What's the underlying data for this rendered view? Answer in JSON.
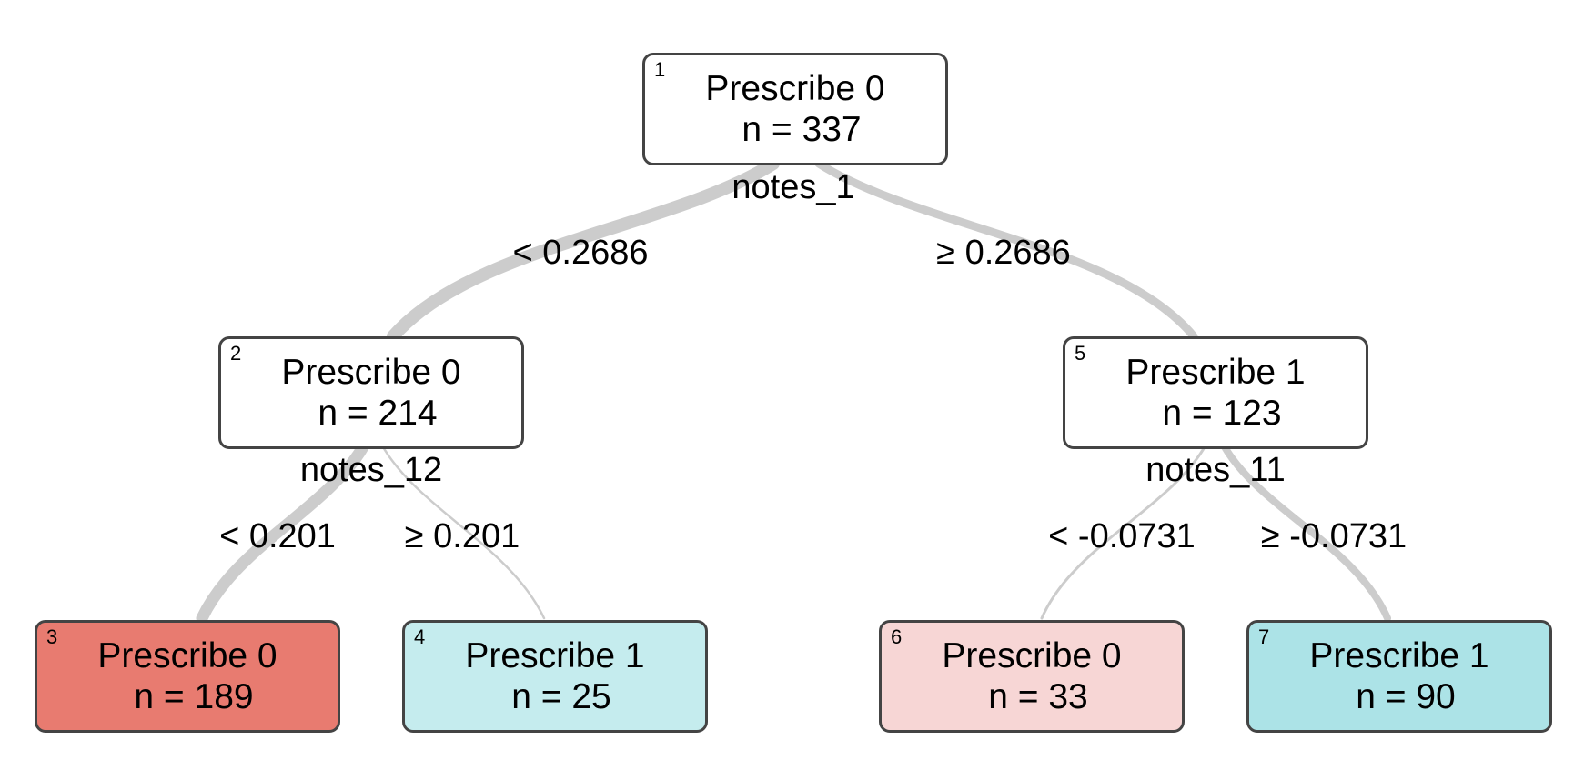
{
  "nodes": [
    {
      "id": "1",
      "label": "Prescribe 0",
      "n": "n = 337",
      "fill": "#ffffff"
    },
    {
      "id": "2",
      "label": "Prescribe 0",
      "n": "n = 214",
      "fill": "#ffffff"
    },
    {
      "id": "3",
      "label": "Prescribe 0",
      "n": "n = 189",
      "fill": "#e87b70"
    },
    {
      "id": "4",
      "label": "Prescribe 1",
      "n": "n = 25",
      "fill": "#c5ecee"
    },
    {
      "id": "5",
      "label": "Prescribe 1",
      "n": "n = 123",
      "fill": "#ffffff"
    },
    {
      "id": "6",
      "label": "Prescribe 0",
      "n": "n = 33",
      "fill": "#f7d6d5"
    },
    {
      "id": "7",
      "label": "Prescribe 1",
      "n": "n = 90",
      "fill": "#ace3e7"
    }
  ],
  "splits": [
    {
      "node": "1",
      "variable": "notes_1",
      "left": "< 0.2686",
      "right": "≥ 0.2686"
    },
    {
      "node": "2",
      "variable": "notes_12",
      "left": "< 0.201",
      "right": "≥ 0.201"
    },
    {
      "node": "5",
      "variable": "notes_11",
      "left": "< -0.0731",
      "right": "≥ -0.0731"
    }
  ],
  "edge_color": "#cccccc"
}
